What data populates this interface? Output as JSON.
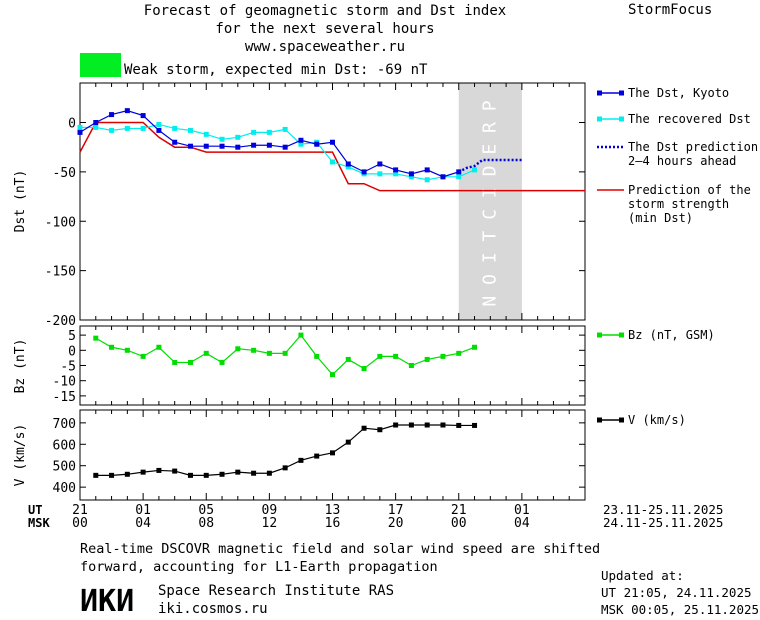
{
  "header": {
    "title_lines": [
      "Forecast of geomagnetic storm and Dst index",
      "for the next several hours",
      "www.spaceweather.ru"
    ],
    "brand": "StormFocus",
    "storm_label": "Weak storm, expected min Dst: -69 nT",
    "storm_color": "#00ee22"
  },
  "colors": {
    "dst_kyoto": "#0000dd",
    "dst_recovered": "#00eeee",
    "prediction_strength": "#dd0000",
    "bz": "#00dd00",
    "v": "#000000",
    "prediction_band": "#d8d8d8"
  },
  "chart_data": [
    {
      "type": "line",
      "ylabel": "Dst (nT)",
      "ylim": [
        -200,
        40
      ],
      "yticks": [
        0,
        -50,
        -100,
        -150,
        -200
      ],
      "x_unit": "hours from 21 UT, 23.11.2025",
      "xlim": [
        0,
        32
      ],
      "prediction_band_x": [
        24,
        28
      ],
      "prediction_band_label": "PREDICTION",
      "series": [
        {
          "name": "The Dst, Kyoto",
          "x": [
            0,
            1,
            2,
            3,
            4,
            5,
            6,
            7,
            8,
            9,
            10,
            11,
            12,
            13,
            14,
            15,
            16,
            17,
            18,
            19,
            20,
            21,
            22,
            23,
            24
          ],
          "values": [
            -10,
            0,
            8,
            12,
            7,
            -8,
            -20,
            -24,
            -24,
            -24,
            -25,
            -23,
            -23,
            -25,
            -18,
            -22,
            -20,
            -42,
            -50,
            -42,
            -48,
            -52,
            -48,
            -55,
            -50
          ]
        },
        {
          "name": "The recovered Dst",
          "x": [
            0,
            1,
            2,
            3,
            4,
            5,
            6,
            7,
            8,
            9,
            10,
            11,
            12,
            13,
            14,
            15,
            16,
            17,
            18,
            19,
            20,
            21,
            22,
            23,
            24,
            25
          ],
          "values": [
            -5,
            -5,
            -8,
            -6,
            -6,
            -2,
            -6,
            -8,
            -12,
            -17,
            -15,
            -10,
            -10,
            -7,
            -22,
            -20,
            -40,
            -45,
            -52,
            -52,
            -52,
            -55,
            -58,
            -55,
            -55,
            -48
          ]
        },
        {
          "name": "The Dst prediction 2-4 hours ahead",
          "x": [
            24,
            24.5,
            25,
            25.5,
            26,
            26.5,
            27,
            27.5,
            28
          ],
          "values": [
            -50,
            -46,
            -44,
            -38,
            -38,
            -38,
            -38,
            -38,
            -38
          ]
        },
        {
          "name": "Prediction of the storm strength (min Dst)",
          "x": [
            0,
            1,
            2,
            3,
            4,
            5,
            6,
            7,
            8,
            9,
            10,
            11,
            12,
            13,
            14,
            15,
            16,
            17,
            18,
            19,
            20,
            21,
            22,
            23,
            24,
            25,
            26,
            27,
            28,
            29,
            30,
            31,
            32
          ],
          "values": [
            -30,
            0,
            0,
            0,
            0,
            -15,
            -25,
            -25,
            -30,
            -30,
            -30,
            -30,
            -30,
            -30,
            -30,
            -30,
            -30,
            -62,
            -62,
            -69,
            -69,
            -69,
            -69,
            -69,
            -69,
            -69,
            -69,
            -69,
            -69,
            -69,
            -69,
            -69,
            -69
          ]
        }
      ]
    },
    {
      "type": "line",
      "ylabel": "Bz (nT)",
      "ylim": [
        -18,
        8
      ],
      "yticks": [
        5,
        0,
        -5,
        -10,
        -15
      ],
      "series": [
        {
          "name": "Bz (nT, GSM)",
          "x": [
            1,
            2,
            3,
            4,
            5,
            6,
            7,
            8,
            9,
            10,
            11,
            12,
            13,
            14,
            15,
            16,
            17,
            18,
            19,
            20,
            21,
            22,
            23,
            24,
            25
          ],
          "values": [
            4,
            1,
            0,
            -2,
            1,
            -4,
            -4,
            -1,
            -4,
            0.5,
            0,
            -1,
            -1,
            5,
            -2,
            -8,
            -3,
            -6,
            -2,
            -2,
            -5,
            -3,
            -2,
            -1,
            1
          ]
        }
      ]
    },
    {
      "type": "line",
      "ylabel": "V (km/s)",
      "ylim": [
        340,
        760
      ],
      "yticks": [
        700,
        600,
        500,
        400
      ],
      "series": [
        {
          "name": "V (km/s)",
          "x": [
            1,
            2,
            3,
            4,
            5,
            6,
            7,
            8,
            9,
            10,
            11,
            12,
            13,
            14,
            15,
            16,
            17,
            18,
            19,
            20,
            21,
            22,
            23,
            24,
            25
          ],
          "values": [
            455,
            455,
            460,
            470,
            478,
            475,
            455,
            455,
            460,
            470,
            465,
            465,
            490,
            525,
            545,
            560,
            610,
            675,
            668,
            690,
            690,
            690,
            690,
            688,
            688
          ]
        }
      ]
    }
  ],
  "time_axis": {
    "ut_label": "UT",
    "msk_label": "MSK",
    "ut_ticks": [
      "21",
      "01",
      "05",
      "09",
      "13",
      "17",
      "21",
      "01"
    ],
    "msk_ticks": [
      "00",
      "04",
      "08",
      "12",
      "16",
      "20",
      "00",
      "04"
    ],
    "ut_range": "23.11-25.11.2025",
    "msk_range": "24.11-25.11.2025"
  },
  "footer": {
    "note_lines": [
      "Real-time DSCOVR magnetic field and solar wind speed are shifted",
      "forward, accounting for L1-Earth propagation"
    ],
    "logo_text": "ИКИ",
    "institute": "Space Research Institute RAS",
    "site": "iki.cosmos.ru",
    "updated_label": "Updated at:",
    "updated_ut": "UT   21:05, 24.11.2025",
    "updated_msk": "MSK 00:05, 25.11.2025"
  }
}
